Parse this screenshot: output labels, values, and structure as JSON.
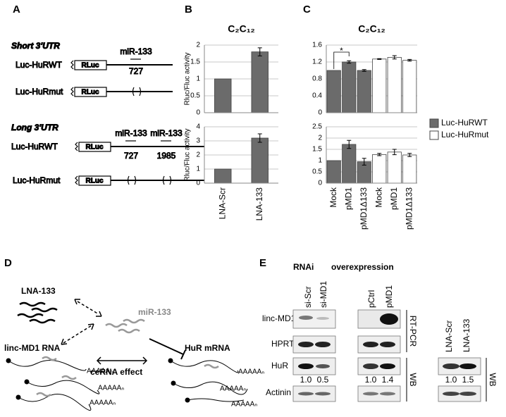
{
  "panels": {
    "a": "A",
    "b": "B",
    "c": "C",
    "d": "D",
    "e": "E"
  },
  "panel_a": {
    "short_title": "Short 3'UTR",
    "long_title": "Long 3'UTR",
    "constructs": [
      {
        "label": "Luc-HuRWT",
        "box": "RLuc",
        "sites": [
          {
            "name": "miR-133",
            "position": 727
          }
        ]
      },
      {
        "label": "Luc-HuRmut",
        "box": "RLuc"
      },
      {
        "label": "Luc-HuRWT",
        "box": "RLuc",
        "sites": [
          {
            "name": "miR-133",
            "position": 727
          },
          {
            "name": "miR-133",
            "position": 1985
          }
        ]
      },
      {
        "label": "Luc-HuRmut",
        "box": "RLuc"
      }
    ]
  },
  "chart_data": [
    {
      "type": "bar",
      "title": "C₂C₁₂",
      "y_label": "Rluc/Fluc activity",
      "categories": [
        null,
        null
      ],
      "series": [
        {
          "color": "#6b6b6b",
          "values": [
            1,
            1.8
          ],
          "errors": [
            0,
            0.12
          ]
        }
      ],
      "ylim": [
        0,
        2
      ],
      "yticks": [
        0,
        0.5,
        1,
        1.5,
        2
      ],
      "grid": true
    },
    {
      "type": "bar",
      "y_label": "Rluc/Fluc activity",
      "categories": [
        "LNA-Scr",
        "LNA-133"
      ],
      "series": [
        {
          "color": "#6b6b6b",
          "values": [
            1,
            3.2
          ],
          "errors": [
            0,
            0.3
          ]
        }
      ],
      "ylim": [
        0,
        4
      ],
      "yticks": [
        0,
        1,
        2,
        3,
        4
      ],
      "grid": true
    },
    {
      "type": "bar",
      "title": "C₂C₁₂",
      "categories": [
        null,
        null,
        null,
        null,
        null,
        null
      ],
      "series": [
        {
          "name": "Luc-HuRWT",
          "color": "#6b6b6b",
          "values": [
            1,
            1.2,
            1.0,
            null,
            null,
            null
          ],
          "errors": [
            0,
            0.03,
            0.02,
            null,
            null,
            null
          ]
        },
        {
          "name": "Luc-HuRmut",
          "color": "#ffffff",
          "values": [
            null,
            null,
            null,
            1.27,
            1.31,
            1.24
          ],
          "errors": [
            null,
            null,
            null,
            0.01,
            0.04,
            0.02
          ]
        }
      ],
      "ylim": [
        0,
        1.6
      ],
      "yticks": [
        0,
        0.4,
        0.8,
        1.2,
        1.6
      ],
      "grid": true,
      "legend": "right",
      "annotation": "*"
    },
    {
      "type": "bar",
      "categories": [
        "Mock",
        "pMD1",
        "pMD1Δ133",
        "Mock",
        "pMD1",
        "pMD1Δ133"
      ],
      "series": [
        {
          "color": "#6b6b6b",
          "values": [
            1,
            1.72,
            0.95,
            null,
            null,
            null
          ],
          "errors": [
            0,
            0.18,
            0.15,
            null,
            null,
            null
          ]
        },
        {
          "color": "#ffffff",
          "values": [
            null,
            null,
            null,
            1.27,
            1.38,
            1.25
          ],
          "errors": [
            null,
            null,
            null,
            0.05,
            0.12,
            0.07
          ]
        }
      ],
      "ylim": [
        0,
        2.5
      ],
      "yticks": [
        0,
        0.5,
        1,
        1.5,
        2,
        2.5
      ],
      "grid": true
    }
  ],
  "panel_d": {
    "lna": "LNA-133",
    "mirna": "miR-133",
    "lincrna": "linc-MD1 RNA",
    "mrna": "HuR mRNA",
    "effect": "ceRNA effect",
    "polya": [
      "AAAAAₙ",
      "AAAAAₙ",
      "AAAAAₙ",
      "AAAAAₙ",
      "AAAAAₙ",
      "AAAAAₙ"
    ]
  },
  "panel_e": {
    "groups": [
      "RNAi",
      "overexpression"
    ],
    "lanes": [
      "si-Scr",
      "si-MD1",
      "pCtrl",
      "pMD1",
      "LNA-Scr",
      "LNA-133"
    ],
    "rows": [
      "linc-MD1",
      "HPRT",
      "HuR",
      "Actinin"
    ],
    "methods": [
      "RT-PCR",
      "WB",
      "WB"
    ],
    "quantification": [
      "1.0",
      "0.5",
      "1.0",
      "1.4",
      "1.0",
      "1.5"
    ]
  }
}
